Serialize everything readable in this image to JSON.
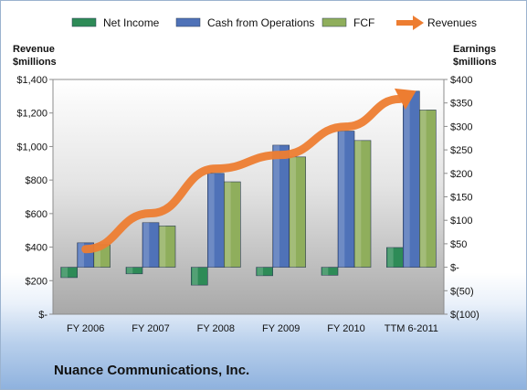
{
  "chart_data": {
    "type": "bar",
    "title": "Nuance Communications, Inc.",
    "categories": [
      "FY 2006",
      "FY 2007",
      "FY 2008",
      "FY 2009",
      "FY 2010",
      "TTM 6-2011"
    ],
    "left_axis": {
      "label_line1": "Revenue",
      "label_line2": "$millions",
      "ylim": [
        0,
        1400
      ],
      "ticks": [
        0,
        200,
        400,
        600,
        800,
        1000,
        1200,
        1400
      ],
      "tick_labels": [
        "$-",
        "$200",
        "$400",
        "$600",
        "$800",
        "$1,000",
        "$1,200",
        "$1,400"
      ]
    },
    "right_axis": {
      "label_line1": "Earnings",
      "label_line2": "$millions",
      "ylim": [
        -100,
        400
      ],
      "ticks": [
        -100,
        -50,
        0,
        50,
        100,
        150,
        200,
        250,
        300,
        350,
        400
      ],
      "tick_labels": [
        "$(100)",
        "$(50)",
        "$-",
        "$50",
        "$100",
        "$150",
        "$200",
        "$250",
        "$300",
        "$350",
        "$400"
      ]
    },
    "series": [
      {
        "name": "Net Income",
        "axis": "right",
        "kind": "bar",
        "color": "#2e8b57",
        "values": [
          -22,
          -14,
          -38,
          -18,
          -17,
          42
        ]
      },
      {
        "name": "Cash from Operations",
        "axis": "right",
        "kind": "bar",
        "color": "#4f72b8",
        "values": [
          52,
          95,
          200,
          260,
          290,
          375
        ]
      },
      {
        "name": "FCF",
        "axis": "right",
        "kind": "bar",
        "color": "#8fae5c",
        "values": [
          48,
          88,
          182,
          235,
          270,
          335
        ]
      },
      {
        "name": "Revenues",
        "axis": "left",
        "kind": "line",
        "color": "#ed7d31",
        "values": [
          388,
          602,
          868,
          950,
          1119,
          1318
        ]
      }
    ],
    "grid": false,
    "legend_position": "top"
  }
}
